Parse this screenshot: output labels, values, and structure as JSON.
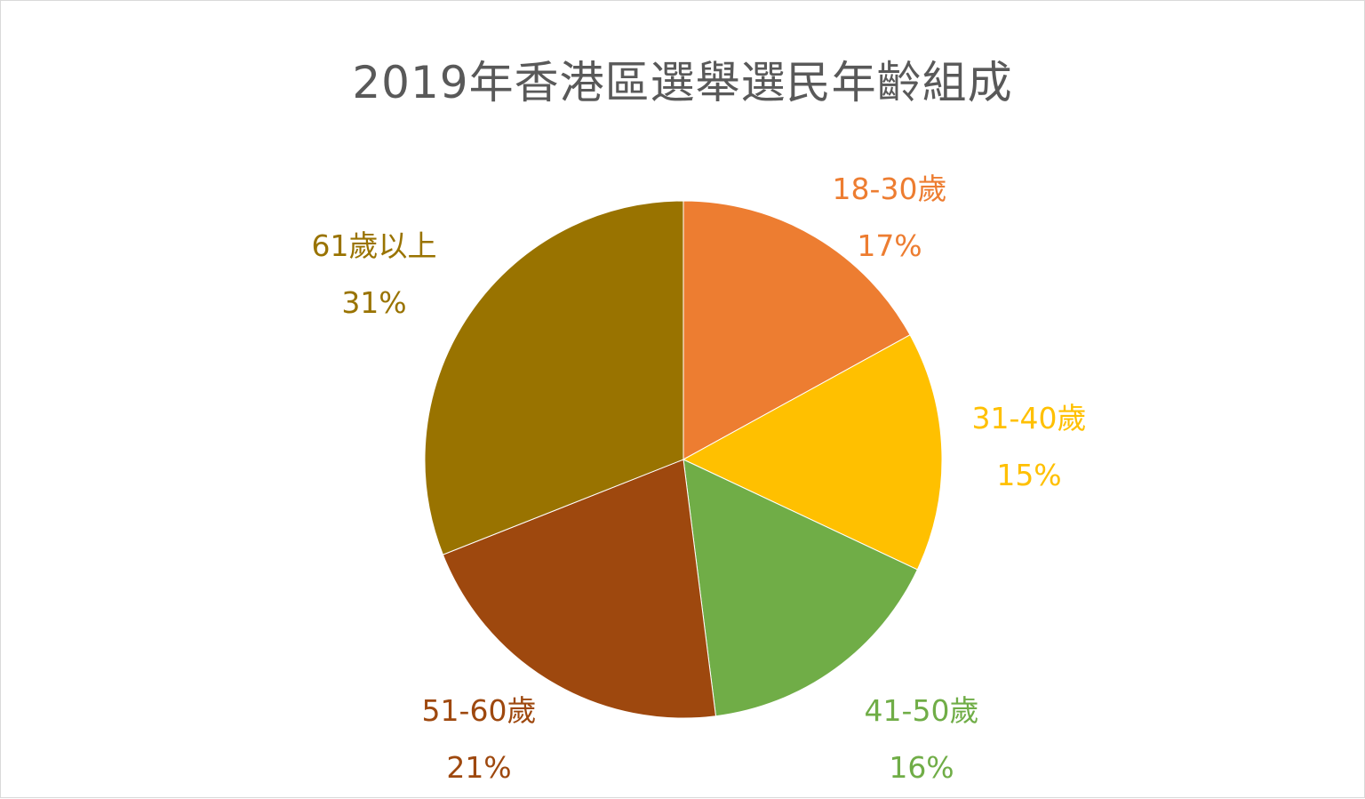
{
  "chart_data": {
    "type": "pie",
    "title": "2019年香港區選舉選民年齡組成",
    "slices": [
      {
        "label": "18-30歲",
        "value": 17,
        "value_label": "17%",
        "color": "#ED7D31"
      },
      {
        "label": "31-40歲",
        "value": 15,
        "value_label": "15%",
        "color": "#FFC000"
      },
      {
        "label": "41-50歲",
        "value": 16,
        "value_label": "16%",
        "color": "#70AD47"
      },
      {
        "label": "51-60歲",
        "value": 21,
        "value_label": "21%",
        "color": "#9E480E"
      },
      {
        "label": "61歲以上",
        "value": 31,
        "value_label": "31%",
        "color": "#997300"
      }
    ],
    "legend": "none",
    "start_angle": "12 o'clock, clockwise"
  }
}
